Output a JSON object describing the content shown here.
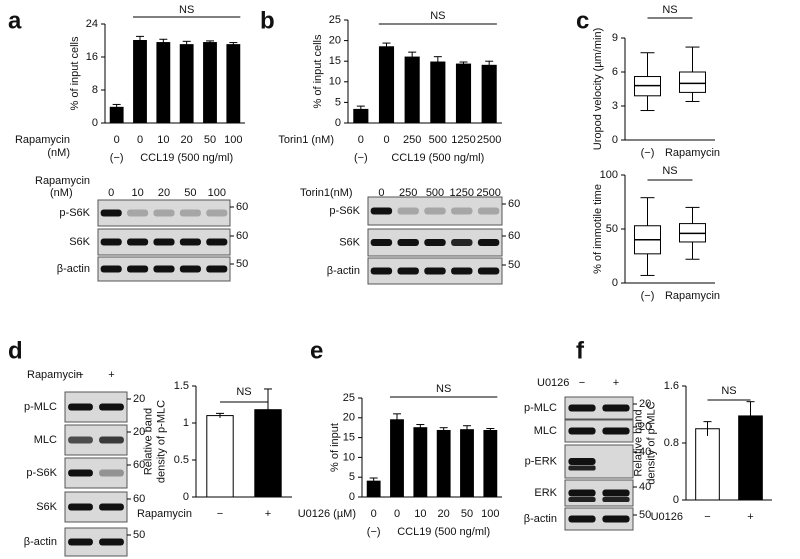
{
  "panel_labels": [
    "a",
    "b",
    "c",
    "d",
    "e",
    "f"
  ],
  "chart_data": [
    {
      "type": "bar",
      "ylabel": "% of input cells",
      "treatment_label": [
        "Rapamycin",
        "(nM)"
      ],
      "control_label": "(−)",
      "group_label": "CCL19 (500 ng/ml)",
      "categories": [
        "0",
        "0",
        "10",
        "20",
        "50",
        "100"
      ],
      "values": [
        3.8,
        20,
        19.5,
        19,
        19.5,
        19
      ],
      "errors": [
        0.7,
        1.0,
        0.8,
        0.8,
        0.4,
        0.5
      ],
      "color": "#000000",
      "ylim": [
        0,
        24
      ],
      "yticks": [
        0,
        8,
        16,
        24
      ],
      "annotation": "NS"
    },
    {
      "type": "bar",
      "ylabel": "% of input cells",
      "treatment_label": [
        "Torin1 (nM)"
      ],
      "control_label": "(−)",
      "group_label": "CCL19 (500 ng/ml)",
      "categories": [
        "0",
        "0",
        "250",
        "500",
        "1250",
        "2500"
      ],
      "values": [
        3.3,
        18.5,
        16,
        14.8,
        14.3,
        14
      ],
      "errors": [
        0.8,
        0.9,
        1.2,
        1.3,
        0.5,
        1.0
      ],
      "color": "#000000",
      "ylim": [
        0,
        25
      ],
      "yticks": [
        0,
        5,
        10,
        15,
        20,
        25
      ],
      "annotation": "NS"
    },
    {
      "type": "box",
      "ylabel": "Uropod velocity (µm/min)",
      "categories": [
        "(−)",
        "Rapamycin"
      ],
      "boxes": [
        {
          "min": 2.6,
          "q1": 3.9,
          "median": 4.8,
          "q3": 5.6,
          "max": 7.7
        },
        {
          "min": 3.4,
          "q1": 4.2,
          "median": 5.0,
          "q3": 6.0,
          "max": 8.2
        }
      ],
      "ylim": [
        0,
        9
      ],
      "yticks": [
        0,
        3,
        6,
        9
      ],
      "annotation": "NS"
    },
    {
      "type": "box",
      "ylabel": "% of immotile time",
      "categories": [
        "(−)",
        "Rapamycin"
      ],
      "boxes": [
        {
          "min": 7,
          "q1": 27,
          "median": 40,
          "q3": 53,
          "max": 79
        },
        {
          "min": 22,
          "q1": 38,
          "median": 46,
          "q3": 55,
          "max": 70
        }
      ],
      "ylim": [
        0,
        100
      ],
      "yticks": [
        0,
        50,
        100
      ],
      "annotation": "NS"
    },
    {
      "type": "bar",
      "ylabel": [
        "Relative band",
        "density of p-MLC"
      ],
      "treatment_label": [
        "Rapamycin"
      ],
      "categories": [
        "−",
        "+"
      ],
      "values": [
        1.1,
        1.18
      ],
      "errors": [
        0.03,
        0.28
      ],
      "colors": [
        "#ffffff",
        "#000000"
      ],
      "ylim": [
        0,
        1.5
      ],
      "yticks": [
        0,
        0.5,
        1,
        1.5
      ],
      "annotation": "NS"
    },
    {
      "type": "bar",
      "ylabel": "% of input",
      "treatment_label": [
        "U0126 (µM)"
      ],
      "control_label": "(−)",
      "group_label": "CCL19 (500 ng/ml)",
      "categories": [
        "0",
        "0",
        "10",
        "20",
        "50",
        "100"
      ],
      "values": [
        4,
        19.5,
        17.5,
        16.8,
        17,
        16.8
      ],
      "errors": [
        0.8,
        1.5,
        0.8,
        0.7,
        1.0,
        0.5
      ],
      "color": "#000000",
      "ylim": [
        0,
        25
      ],
      "yticks": [
        0,
        5,
        10,
        15,
        20,
        25
      ],
      "annotation": "NS"
    },
    {
      "type": "bar",
      "ylabel": [
        "Relative band",
        "density of p-MLC"
      ],
      "treatment_label": [
        "U0126"
      ],
      "categories": [
        "−",
        "+"
      ],
      "values": [
        1.0,
        1.18
      ],
      "errors": [
        0.1,
        0.2
      ],
      "colors": [
        "#ffffff",
        "#000000"
      ],
      "ylim": [
        0,
        1.6
      ],
      "yticks": [
        0,
        0.8,
        1.6
      ],
      "annotation": "NS"
    }
  ],
  "blots": [
    {
      "header": [
        "Rapamycin",
        "(nM)"
      ],
      "lanes": [
        "0",
        "10",
        "20",
        "50",
        "100"
      ],
      "rows": [
        {
          "name": "p-S6K",
          "marker": "60"
        },
        {
          "name": "S6K",
          "marker": "60"
        },
        {
          "name": "β-actin",
          "marker": "50"
        }
      ]
    },
    {
      "header": [
        "Torin1(nM)"
      ],
      "lanes": [
        "0",
        "250",
        "500",
        "1250",
        "2500"
      ],
      "rows": [
        {
          "name": "p-S6K",
          "marker": "60"
        },
        {
          "name": "S6K",
          "marker": "60"
        },
        {
          "name": "β-actin",
          "marker": "50"
        }
      ]
    },
    {
      "header": [
        "Rapamycin"
      ],
      "lanes": [
        "−",
        "+"
      ],
      "rows": [
        {
          "name": "p-MLC",
          "marker": "20"
        },
        {
          "name": "MLC",
          "marker": "20"
        },
        {
          "name": "p-S6K",
          "marker": "60"
        },
        {
          "name": "S6K",
          "marker": "60"
        },
        {
          "name": "β-actin",
          "marker": "50"
        }
      ]
    },
    {
      "header": [
        "U0126"
      ],
      "lanes": [
        "−",
        "+"
      ],
      "rows": [
        {
          "name": "p-MLC",
          "marker": "20"
        },
        {
          "name": "MLC",
          "marker": "20"
        },
        {
          "name": "p-ERK",
          "marker": "40"
        },
        {
          "name": "ERK",
          "marker": "40"
        },
        {
          "name": "β-actin",
          "marker": "50"
        }
      ]
    }
  ]
}
